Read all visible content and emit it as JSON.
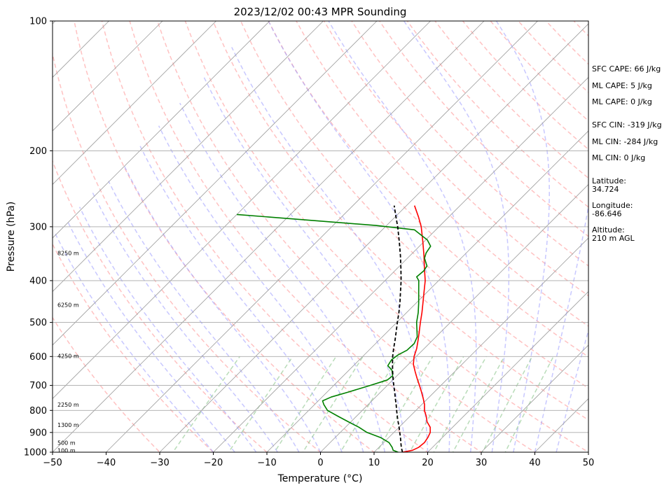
{
  "chart_data": {
    "type": "skew-t",
    "title": "2023/12/02 00:43 MPR Sounding",
    "xlabel": "Temperature (°C)",
    "ylabel": "Pressure (hPa)",
    "xlim": [
      -50,
      50
    ],
    "ylim": [
      1000,
      100
    ],
    "y_scale": "log",
    "x_ticks": [
      -50,
      -40,
      -30,
      -20,
      -10,
      0,
      10,
      20,
      30,
      40,
      50
    ],
    "y_ticks": [
      100,
      200,
      300,
      400,
      500,
      600,
      700,
      800,
      900,
      1000
    ],
    "grid": true,
    "height_labels": [
      {
        "text": "100 m",
        "p": 990
      },
      {
        "text": "500 m",
        "p": 950
      },
      {
        "text": "1300 m",
        "p": 865
      },
      {
        "text": "2250 m",
        "p": 775
      },
      {
        "text": "4250 m",
        "p": 598
      },
      {
        "text": "6250 m",
        "p": 455
      },
      {
        "text": "8250 m",
        "p": 345
      }
    ],
    "series": [
      {
        "role": "temperature",
        "color": "#ff0000",
        "points": [
          [
            1000,
            15.3
          ],
          [
            990,
            16.8
          ],
          [
            975,
            17.4
          ],
          [
            950,
            17.6
          ],
          [
            925,
            17.3
          ],
          [
            900,
            16.8
          ],
          [
            875,
            15.8
          ],
          [
            850,
            14.2
          ],
          [
            825,
            13.0
          ],
          [
            800,
            11.6
          ],
          [
            775,
            10.5
          ],
          [
            750,
            9.1
          ],
          [
            725,
            7.6
          ],
          [
            700,
            6.0
          ],
          [
            675,
            4.3
          ],
          [
            650,
            2.6
          ],
          [
            625,
            0.9
          ],
          [
            600,
            -0.4
          ],
          [
            575,
            -1.4
          ],
          [
            550,
            -2.7
          ],
          [
            525,
            -4.1
          ],
          [
            500,
            -5.6
          ],
          [
            475,
            -7.1
          ],
          [
            450,
            -8.8
          ],
          [
            425,
            -10.6
          ],
          [
            400,
            -12.5
          ],
          [
            375,
            -14.9
          ],
          [
            350,
            -17.4
          ],
          [
            325,
            -20.2
          ],
          [
            300,
            -23.3
          ],
          [
            285,
            -25.6
          ],
          [
            268,
            -28.5
          ]
        ]
      },
      {
        "role": "dewpoint",
        "color": "#008000",
        "points": [
          [
            1000,
            14.5
          ],
          [
            990,
            13.2
          ],
          [
            975,
            12.5
          ],
          [
            950,
            11.0
          ],
          [
            925,
            8.5
          ],
          [
            900,
            5.0
          ],
          [
            875,
            2.5
          ],
          [
            850,
            -0.5
          ],
          [
            825,
            -3.5
          ],
          [
            800,
            -6.5
          ],
          [
            775,
            -8.3
          ],
          [
            760,
            -9.2
          ],
          [
            745,
            -8.3
          ],
          [
            725,
            -6.0
          ],
          [
            700,
            -3.2
          ],
          [
            680,
            -1.0
          ],
          [
            665,
            -0.8
          ],
          [
            645,
            -2.0
          ],
          [
            630,
            -3.6
          ],
          [
            610,
            -4.0
          ],
          [
            595,
            -3.7
          ],
          [
            580,
            -2.9
          ],
          [
            560,
            -2.8
          ],
          [
            540,
            -3.5
          ],
          [
            500,
            -6.3
          ],
          [
            475,
            -7.8
          ],
          [
            450,
            -9.6
          ],
          [
            425,
            -11.6
          ],
          [
            400,
            -13.7
          ],
          [
            392,
            -14.8
          ],
          [
            380,
            -14.6
          ],
          [
            370,
            -14.9
          ],
          [
            355,
            -16.8
          ],
          [
            345,
            -17.5
          ],
          [
            333,
            -17.9
          ],
          [
            322,
            -19.7
          ],
          [
            312,
            -22.2
          ],
          [
            305,
            -24.0
          ],
          [
            298,
            -32.0
          ],
          [
            290,
            -45.0
          ],
          [
            281,
            -60.0
          ]
        ]
      },
      {
        "role": "parcel",
        "color": "#000000",
        "dash": true,
        "points": [
          [
            1000,
            15.3
          ],
          [
            975,
            14.2
          ],
          [
            950,
            13.2
          ],
          [
            925,
            12.2
          ],
          [
            900,
            11.1
          ],
          [
            875,
            10.0
          ],
          [
            850,
            8.8
          ],
          [
            825,
            7.6
          ],
          [
            800,
            6.4
          ],
          [
            775,
            5.2
          ],
          [
            750,
            3.9
          ],
          [
            725,
            2.6
          ],
          [
            700,
            1.2
          ],
          [
            675,
            -0.2
          ],
          [
            650,
            -1.6
          ],
          [
            625,
            -3.0
          ],
          [
            600,
            -4.4
          ],
          [
            575,
            -5.7
          ],
          [
            550,
            -7.0
          ],
          [
            525,
            -8.4
          ],
          [
            500,
            -9.9
          ],
          [
            475,
            -11.4
          ],
          [
            450,
            -13.1
          ],
          [
            425,
            -15.0
          ],
          [
            400,
            -17.0
          ],
          [
            375,
            -19.3
          ],
          [
            350,
            -21.8
          ],
          [
            325,
            -24.6
          ],
          [
            300,
            -27.7
          ],
          [
            285,
            -29.8
          ],
          [
            268,
            -32.3
          ]
        ]
      }
    ]
  },
  "side_info": {
    "sfc_cape": "SFC CAPE: 66 J/kg",
    "ml_cape_1": "ML CAPE: 5 J/kg",
    "ml_cape_2": "ML CAPE: 0 J/kg",
    "sfc_cin": "SFC CIN: -319 J/kg",
    "ml_cin_1": "ML CIN: -284 J/kg",
    "ml_cin_2": "ML CIN: 0 J/kg",
    "lat_label": "Latitude:",
    "lat_value": "34.724",
    "lon_label": "Longitude:",
    "lon_value": "-86.646",
    "alt_label": "Altitude:",
    "alt_value": "210 m AGL"
  }
}
